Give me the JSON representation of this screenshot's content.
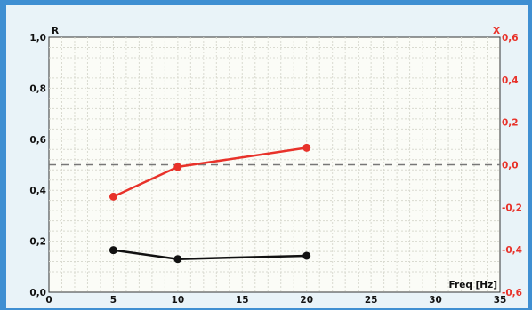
{
  "chart_data": {
    "type": "line",
    "x_axis": {
      "label": "Freq [Hz]",
      "range": [
        0,
        35
      ],
      "ticks": [
        0,
        5,
        10,
        15,
        20,
        25,
        30,
        35
      ]
    },
    "y_left": {
      "label": "R",
      "range": [
        0.0,
        1.0
      ],
      "ticks": [
        "0,0",
        "0,2",
        "0,4",
        "0,6",
        "0,8",
        "1,0"
      ],
      "tick_values": [
        0,
        0.2,
        0.4,
        0.6,
        0.8,
        1.0
      ],
      "color": "#111111"
    },
    "y_right": {
      "label": "X",
      "range": [
        -0.6,
        0.6
      ],
      "ticks": [
        "-0,6",
        "-0,4",
        "-0,2",
        "0,0",
        "0,2",
        "0,4",
        "0,6"
      ],
      "tick_values": [
        -0.6,
        -0.4,
        -0.2,
        0,
        0.2,
        0.4,
        0.6
      ],
      "color": "#e8322a"
    },
    "series": [
      {
        "axis": "right",
        "color": "#e8322a",
        "x": [
          5,
          10,
          20
        ],
        "y": [
          -0.15,
          -0.01,
          0.08
        ]
      },
      {
        "axis": "left",
        "color": "#111111",
        "x": [
          5,
          10,
          20
        ],
        "y": [
          0.165,
          0.13,
          0.143
        ]
      }
    ],
    "reference_line": {
      "axis": "right",
      "value": 0.0,
      "style": "dashed",
      "color": "#777777"
    },
    "grid": true
  }
}
